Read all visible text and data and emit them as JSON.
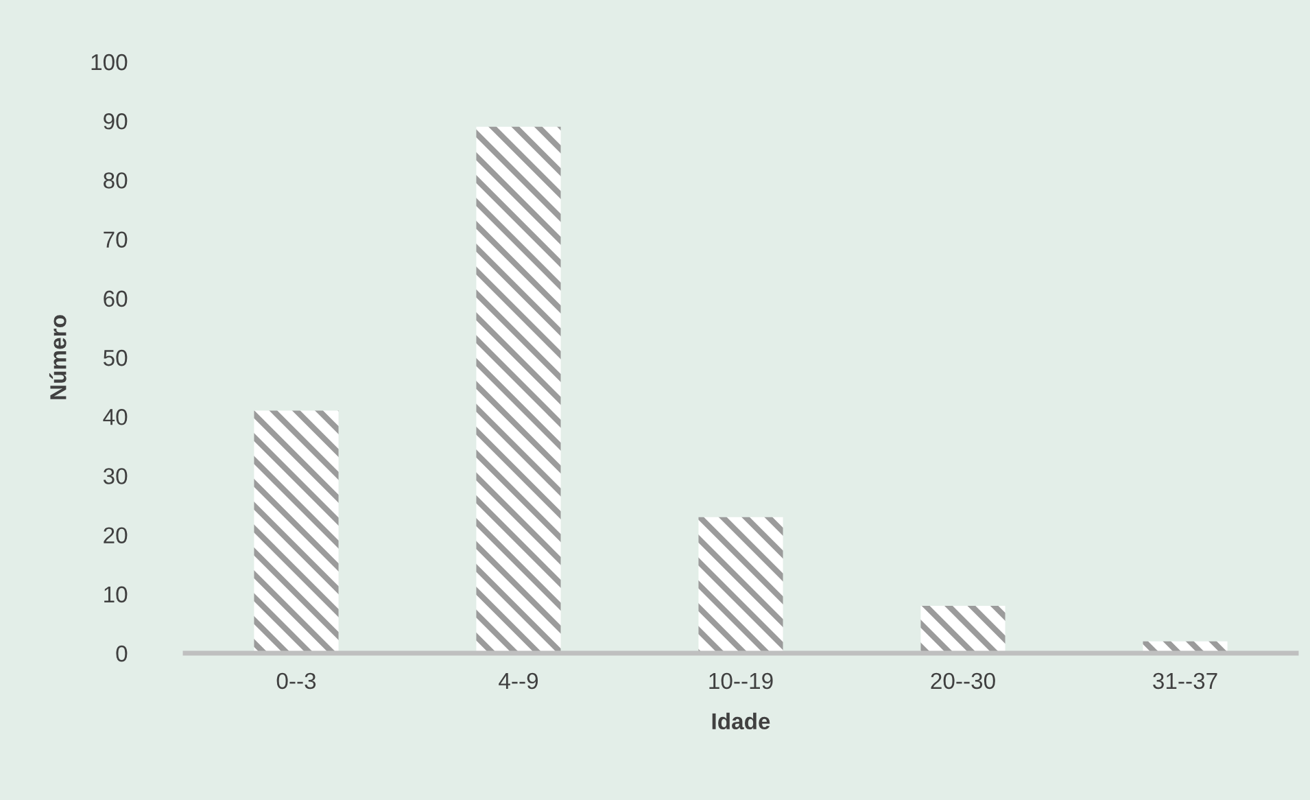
{
  "chart_data": {
    "type": "bar",
    "xlabel": "Idade",
    "ylabel": "Número",
    "categories": [
      "0--3",
      "4--9",
      "10--19",
      "20--30",
      "31--37"
    ],
    "values": [
      41,
      89,
      23,
      8,
      2
    ],
    "color": "#9b9b9b",
    "ylim": [
      0,
      100
    ],
    "yticks": [
      0,
      10,
      20,
      30,
      40,
      50,
      60,
      70,
      80,
      90,
      100
    ],
    "grid": false
  }
}
